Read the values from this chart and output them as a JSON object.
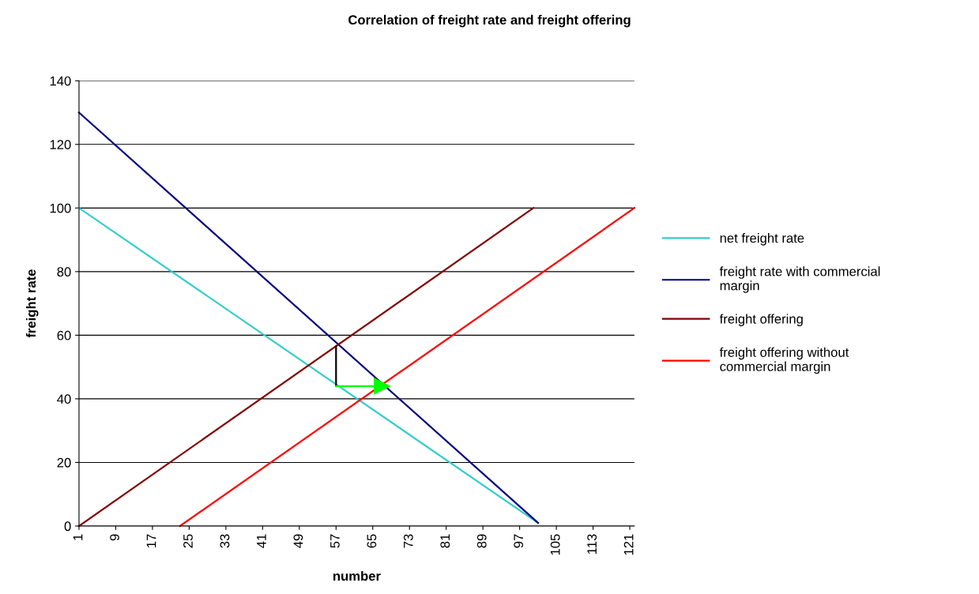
{
  "chart_data": {
    "type": "line",
    "title": "Correlation of freight rate and freight offering",
    "xlabel": "number",
    "ylabel": "freight rate",
    "xlim": [
      1,
      122
    ],
    "xticks": [
      1,
      9,
      17,
      25,
      33,
      41,
      49,
      57,
      65,
      73,
      81,
      89,
      97,
      105,
      113,
      121
    ],
    "ylim": [
      0,
      140
    ],
    "yticks": [
      0,
      20,
      40,
      60,
      80,
      100,
      120,
      140
    ],
    "grid": "y",
    "legend": "right",
    "marker": "none",
    "line_style": "solid",
    "series": [
      {
        "name": "net freight rate",
        "color": "#33cccc",
        "x": [
          1,
          101
        ],
        "values": [
          100,
          1
        ]
      },
      {
        "name": "freight rate with commercial margin",
        "color": "#000080",
        "x": [
          1,
          101
        ],
        "values": [
          130,
          1
        ]
      },
      {
        "name": "freight offering",
        "color": "#800000",
        "x": [
          1,
          100
        ],
        "values": [
          0,
          100
        ]
      },
      {
        "name": "freight offering without commercial margin",
        "color": "#ff0000",
        "x": [
          23,
          122
        ],
        "values": [
          0,
          100
        ]
      },
      {
        "color": "#000000",
        "x": [
          57,
          57
        ],
        "values": [
          44,
          56.5
        ]
      },
      {
        "color": "#00ff00",
        "x": [
          57,
          67
        ],
        "values": [
          44,
          44
        ],
        "marker": "triangle"
      }
    ]
  }
}
